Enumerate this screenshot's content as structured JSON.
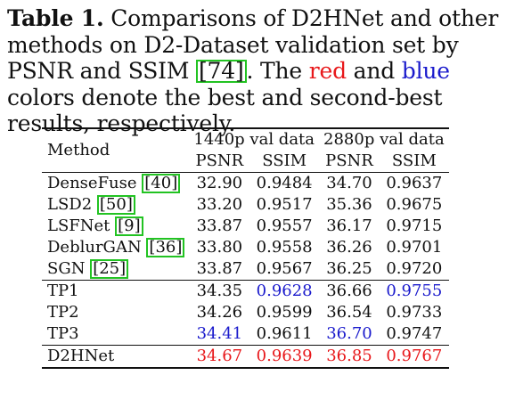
{
  "caption": {
    "label": "Table 1.",
    "text_a": " Comparisons of D2HNet and other methods on D2-Dataset validation set by PSNR and SSIM ",
    "cite": "[74]",
    "text_b": ". The ",
    "red_word": "red",
    "text_c": " and ",
    "blue_word": "blue",
    "text_d": " colors denote the best and second-best results, respectively."
  },
  "colors": {
    "best": "#e8181b",
    "second": "#1a1acc",
    "citation_box": "#22c322"
  },
  "table": {
    "method_header": "Method",
    "group_1440": "1440p val data",
    "group_2880": "2880p val data",
    "psnr": "PSNR",
    "ssim": "SSIM",
    "rows": [
      {
        "name": "DenseFuse ",
        "cite": "[40]",
        "v": [
          "32.90",
          "0.9484",
          "34.70",
          "0.9637"
        ],
        "c": [
          "",
          "",
          "",
          ""
        ]
      },
      {
        "name": "LSD2 ",
        "cite": "[50]",
        "v": [
          "33.20",
          "0.9517",
          "35.36",
          "0.9675"
        ],
        "c": [
          "",
          "",
          "",
          ""
        ]
      },
      {
        "name": "LSFNet ",
        "cite": "[9]",
        "v": [
          "33.87",
          "0.9557",
          "36.17",
          "0.9715"
        ],
        "c": [
          "",
          "",
          "",
          ""
        ]
      },
      {
        "name": "DeblurGAN ",
        "cite": "[36]",
        "v": [
          "33.80",
          "0.9558",
          "36.26",
          "0.9701"
        ],
        "c": [
          "",
          "",
          "",
          ""
        ]
      },
      {
        "name": "SGN ",
        "cite": "[25]",
        "v": [
          "33.87",
          "0.9567",
          "36.25",
          "0.9720"
        ],
        "c": [
          "",
          "",
          "",
          ""
        ]
      },
      {
        "name": "TP1",
        "cite": "",
        "v": [
          "34.35",
          "0.9628",
          "36.66",
          "0.9755"
        ],
        "c": [
          "",
          "blue",
          "",
          "blue"
        ]
      },
      {
        "name": "TP2",
        "cite": "",
        "v": [
          "34.26",
          "0.9599",
          "36.54",
          "0.9733"
        ],
        "c": [
          "",
          "",
          "",
          ""
        ]
      },
      {
        "name": "TP3",
        "cite": "",
        "v": [
          "34.41",
          "0.9611",
          "36.70",
          "0.9747"
        ],
        "c": [
          "blue",
          "",
          "blue",
          ""
        ]
      },
      {
        "name": "D2HNet",
        "cite": "",
        "v": [
          "34.67",
          "0.9639",
          "36.85",
          "0.9767"
        ],
        "c": [
          "red",
          "red",
          "red",
          "red"
        ]
      }
    ]
  }
}
